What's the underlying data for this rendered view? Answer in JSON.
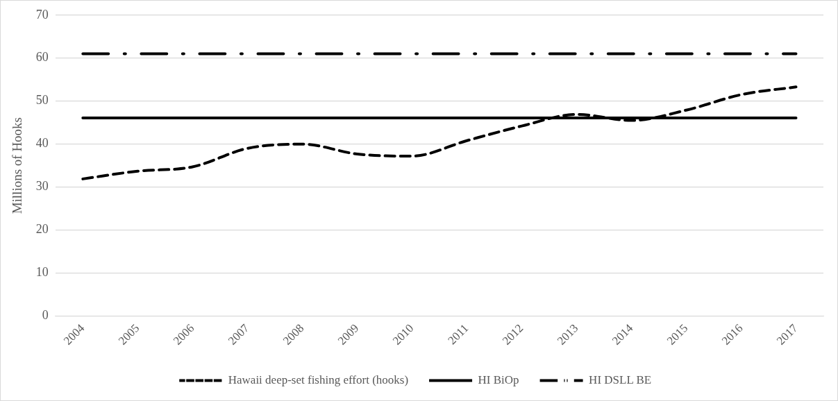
{
  "chart_data": {
    "type": "line",
    "ylabel": "Millions of Hooks",
    "categories": [
      "2004",
      "2005",
      "2006",
      "2007",
      "2008",
      "2009",
      "2010",
      "2011",
      "2012",
      "2013",
      "2014",
      "2015",
      "2016",
      "2017"
    ],
    "series": [
      {
        "name": "Hawaii deep-set fishing effort (hooks)",
        "color": "#000000",
        "line_style": "dashed",
        "values": [
          31.9,
          33.7,
          34.7,
          39.0,
          40.0,
          37.7,
          37.2,
          40.8,
          44.2,
          46.9,
          45.5,
          47.9,
          51.5,
          53.3
        ]
      },
      {
        "name": "HI BiOp",
        "color": "#000000",
        "line_style": "solid",
        "values": [
          46.1,
          46.1,
          46.1,
          46.1,
          46.1,
          46.1,
          46.1,
          46.1,
          46.1,
          46.1,
          46.1,
          46.1,
          46.1,
          46.1
        ]
      },
      {
        "name": "HI DSLL BE",
        "color": "#000000",
        "line_style": "dashdot",
        "values": [
          61,
          61,
          61,
          61,
          61,
          61,
          61,
          61,
          61,
          61,
          61,
          61,
          61,
          61
        ]
      }
    ],
    "ylim": [
      0,
      70
    ],
    "yticks": [
      0,
      10,
      20,
      30,
      40,
      50,
      60,
      70
    ],
    "grid": "y",
    "legend": "bottom",
    "marker": "none"
  }
}
